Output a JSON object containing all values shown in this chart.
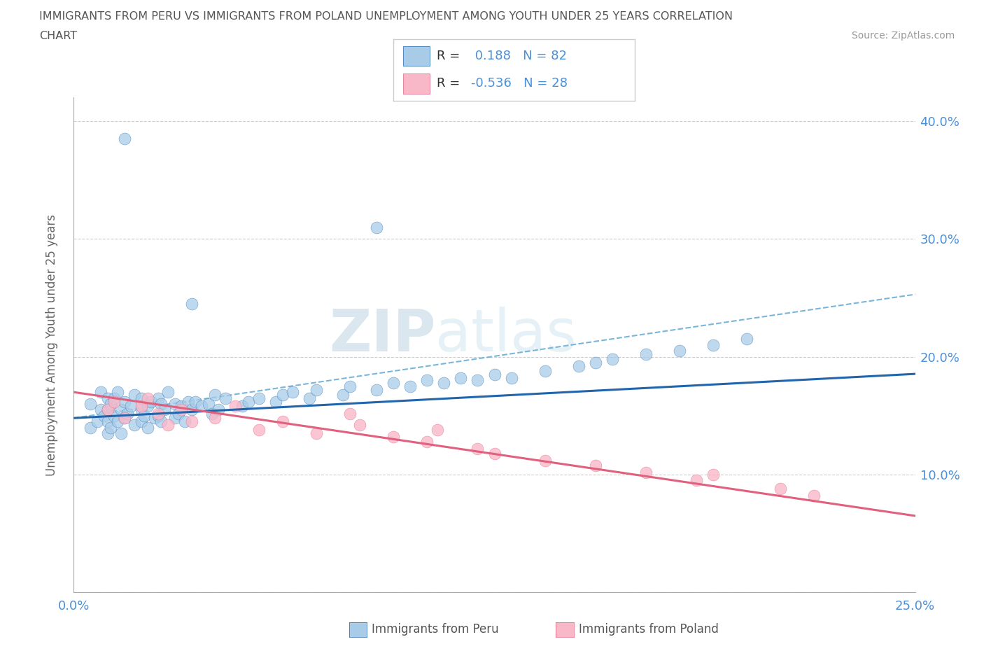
{
  "title_line1": "IMMIGRANTS FROM PERU VS IMMIGRANTS FROM POLAND UNEMPLOYMENT AMONG YOUTH UNDER 25 YEARS CORRELATION",
  "title_line2": "CHART",
  "source_text": "Source: ZipAtlas.com",
  "ylabel": "Unemployment Among Youth under 25 years",
  "xlim": [
    0.0,
    0.25
  ],
  "ylim": [
    0.0,
    0.42
  ],
  "x_tick_labels": [
    "0.0%",
    "",
    "",
    "",
    "",
    "25.0%"
  ],
  "y_tick_labels_right": [
    "",
    "10.0%",
    "20.0%",
    "30.0%",
    "40.0%"
  ],
  "color_peru": "#a8cce8",
  "color_poland": "#f9b8c8",
  "color_peru_line": "#2166ac",
  "color_poland_line": "#e0607e",
  "color_peru_ci": "#6aaed6",
  "R_peru": 0.188,
  "N_peru": 82,
  "R_poland": -0.536,
  "N_poland": 28,
  "legend_label_peru": "Immigrants from Peru",
  "legend_label_poland": "Immigrants from Poland",
  "grid_color": "#cccccc",
  "title_color": "#555555",
  "axis_tick_color": "#4a90d9",
  "watermark_zip_color": "#d6e8f5",
  "watermark_atlas_color": "#c8d8e8"
}
